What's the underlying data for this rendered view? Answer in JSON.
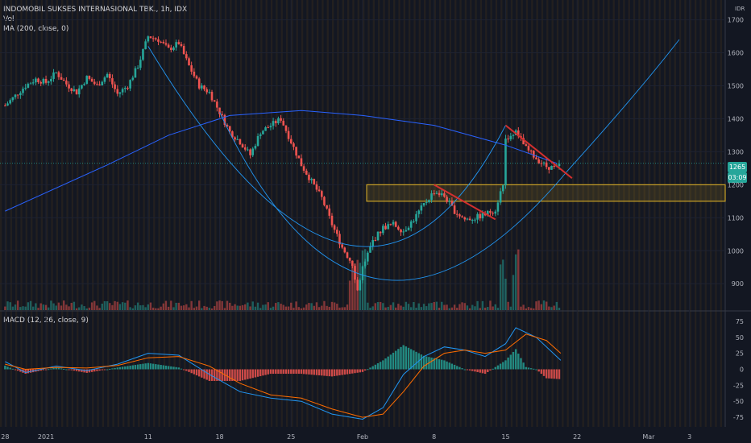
{
  "header": {
    "title": "INDOMOBIL SUKSES INTERNASIONAL TBK., 1h, IDX",
    "vol_label": "Vol",
    "ma_label": "MA (200, close, 0)",
    "currency": "IDR"
  },
  "price_badge": {
    "price": "1265",
    "countdown": "03:09",
    "color": "#26a69a"
  },
  "macd": {
    "label": "MACD (12, 26, close, 9)"
  },
  "colors": {
    "up": "#26a69a",
    "down": "#ef5350",
    "ma": "#2962ff",
    "macd": "#2196f3",
    "signal": "#ff6d00",
    "zone": "#c9a227",
    "trend": "#d32f2f"
  },
  "chart_data": [
    {
      "type": "candlestick",
      "title": "INDOMOBIL SUKSES INTERNASIONAL TBK., 1h, IDX",
      "y_ticks": [
        900,
        1000,
        1100,
        1200,
        1300,
        1400,
        1500,
        1600,
        1700
      ],
      "ylim": [
        820,
        1760
      ],
      "x_ticks": [
        "28",
        "2021",
        "11",
        "18",
        "25",
        "Feb",
        "8",
        "15",
        "22",
        "Mar",
        "3"
      ],
      "x_tick_date_index": [
        -4,
        0,
        10,
        17,
        24,
        31,
        38,
        45,
        52,
        59,
        63
      ],
      "xlim_date_index": [
        -4.5,
        66.5
      ],
      "approx_close_by_date": [
        [
          -4,
          1440
        ],
        [
          -3,
          1470
        ],
        [
          -2,
          1500
        ],
        [
          -1,
          1520
        ],
        [
          0,
          1510
        ],
        [
          1,
          1540
        ],
        [
          2,
          1505
        ],
        [
          3,
          1480
        ],
        [
          4,
          1525
        ],
        [
          5,
          1500
        ],
        [
          6,
          1535
        ],
        [
          7,
          1475
        ],
        [
          8,
          1500
        ],
        [
          9,
          1560
        ],
        [
          10,
          1650
        ],
        [
          11,
          1640
        ],
        [
          12,
          1610
        ],
        [
          13,
          1630
        ],
        [
          14,
          1560
        ],
        [
          15,
          1500
        ],
        [
          16,
          1480
        ],
        [
          17,
          1420
        ],
        [
          18,
          1360
        ],
        [
          19,
          1330
        ],
        [
          20,
          1290
        ],
        [
          21,
          1360
        ],
        [
          22,
          1380
        ],
        [
          23,
          1400
        ],
        [
          24,
          1330
        ],
        [
          25,
          1260
        ],
        [
          26,
          1210
        ],
        [
          27,
          1160
        ],
        [
          28,
          1080
        ],
        [
          29,
          1010
        ],
        [
          30,
          960
        ],
        [
          30.5,
          880
        ],
        [
          31,
          950
        ],
        [
          32,
          1030
        ],
        [
          33,
          1070
        ],
        [
          34,
          1080
        ],
        [
          35,
          1060
        ],
        [
          36,
          1095
        ],
        [
          37,
          1140
        ],
        [
          38,
          1180
        ],
        [
          39,
          1165
        ],
        [
          40,
          1120
        ],
        [
          41,
          1095
        ],
        [
          42,
          1100
        ],
        [
          43,
          1110
        ],
        [
          44,
          1125
        ],
        [
          44.8,
          1210
        ],
        [
          45,
          1340
        ],
        [
          46,
          1360
        ],
        [
          47,
          1310
        ],
        [
          48,
          1280
        ],
        [
          49,
          1255
        ],
        [
          50,
          1250
        ],
        [
          50.4,
          1265
        ]
      ],
      "price_line": 1265,
      "resistance_zone": [
        1150,
        1200
      ],
      "moving_average": {
        "name": "MA (200, close, 0)",
        "points": [
          [
            -4,
            1120
          ],
          [
            6,
            1260
          ],
          [
            12,
            1350
          ],
          [
            18,
            1410
          ],
          [
            25,
            1425
          ],
          [
            31,
            1410
          ],
          [
            38,
            1380
          ],
          [
            45,
            1320
          ],
          [
            50,
            1265
          ]
        ]
      },
      "trendlines": [
        {
          "from": [
            38,
            1200
          ],
          "to": [
            44,
            1095
          ]
        },
        {
          "from": [
            45,
            1380
          ],
          "to": [
            51.5,
            1220
          ]
        }
      ],
      "volume_note": "volume bars at bottom of price pane"
    },
    {
      "type": "line",
      "title": "MACD (12, 26, close, 9)",
      "y_ticks": [
        75,
        50,
        25,
        0,
        -25,
        -50,
        -75
      ],
      "ylim": [
        -90,
        90
      ],
      "series": [
        {
          "name": "MACD",
          "points": [
            [
              -4,
              12
            ],
            [
              -2,
              -5
            ],
            [
              1,
              5
            ],
            [
              4,
              -2
            ],
            [
              7,
              8
            ],
            [
              10,
              25
            ],
            [
              13,
              22
            ],
            [
              16,
              -8
            ],
            [
              19,
              -35
            ],
            [
              22,
              -45
            ],
            [
              25,
              -50
            ],
            [
              28,
              -70
            ],
            [
              31,
              -78
            ],
            [
              33,
              -60
            ],
            [
              35,
              -8
            ],
            [
              37,
              20
            ],
            [
              39,
              35
            ],
            [
              41,
              30
            ],
            [
              43,
              20
            ],
            [
              45,
              40
            ],
            [
              46,
              65
            ],
            [
              48,
              50
            ],
            [
              50,
              20
            ],
            [
              50.4,
              14
            ]
          ]
        },
        {
          "name": "Signal",
          "points": [
            [
              -4,
              8
            ],
            [
              -2,
              0
            ],
            [
              1,
              3
            ],
            [
              4,
              2
            ],
            [
              7,
              6
            ],
            [
              10,
              18
            ],
            [
              13,
              20
            ],
            [
              16,
              5
            ],
            [
              19,
              -22
            ],
            [
              22,
              -40
            ],
            [
              25,
              -45
            ],
            [
              28,
              -62
            ],
            [
              31,
              -75
            ],
            [
              33,
              -70
            ],
            [
              35,
              -35
            ],
            [
              37,
              5
            ],
            [
              39,
              25
            ],
            [
              41,
              30
            ],
            [
              43,
              25
            ],
            [
              45,
              30
            ],
            [
              47,
              55
            ],
            [
              49,
              45
            ],
            [
              50.4,
              25
            ]
          ]
        }
      ]
    }
  ]
}
